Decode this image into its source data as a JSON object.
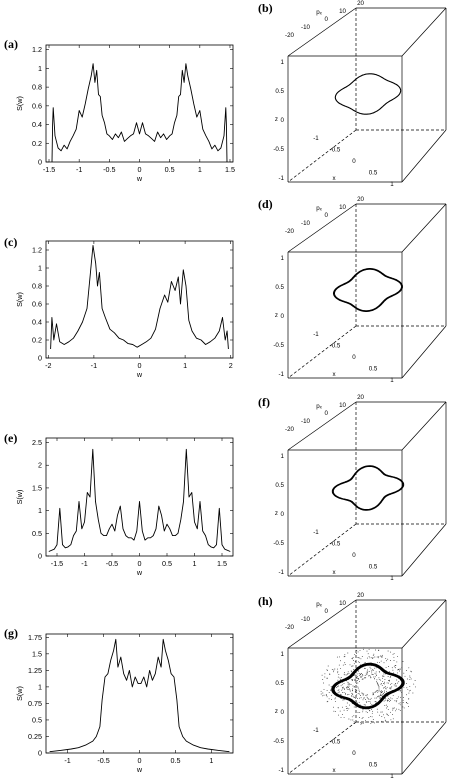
{
  "figure": {
    "panels": [
      {
        "id": "a",
        "label": "(a)"
      },
      {
        "id": "b",
        "label": "(b)"
      },
      {
        "id": "c",
        "label": "(c)"
      },
      {
        "id": "d",
        "label": "(d)"
      },
      {
        "id": "e",
        "label": "(e)"
      },
      {
        "id": "f",
        "label": "(f)"
      },
      {
        "id": "g",
        "label": "(g)"
      },
      {
        "id": "h",
        "label": "(h)"
      }
    ]
  },
  "chart_data": [
    {
      "panel": "a",
      "type": "line",
      "xlabel": "w",
      "ylabel": "S(w)",
      "xlim": [
        -1.55,
        1.55
      ],
      "ylim": [
        0,
        1.25
      ],
      "xticks": [
        -1.5,
        -1,
        -0.5,
        0,
        0.5,
        1,
        1.5
      ],
      "xtick_labels": [
        "-1.5",
        "-1",
        "-0.5",
        "0",
        "0.5",
        "1",
        "1.5"
      ],
      "yticks": [
        0,
        0.2,
        0.4,
        0.6,
        0.8,
        1,
        1.2
      ],
      "ytick_labels": [
        "0",
        "0.2",
        "0.4",
        "0.6",
        "0.8",
        "1",
        "1.2"
      ],
      "x": [
        -1.45,
        -1.44,
        -1.43,
        -1.4,
        -1.35,
        -1.3,
        -1.25,
        -1.2,
        -1.15,
        -1.1,
        -1.05,
        -1.0,
        -0.95,
        -0.9,
        -0.85,
        -0.8,
        -0.77,
        -0.74,
        -0.71,
        -0.68,
        -0.65,
        -0.62,
        -0.58,
        -0.54,
        -0.5,
        -0.45,
        -0.4,
        -0.35,
        -0.3,
        -0.25,
        -0.2,
        -0.15,
        -0.1,
        -0.05,
        0.0,
        0.05,
        0.1,
        0.15,
        0.2,
        0.25,
        0.3,
        0.35,
        0.4,
        0.45,
        0.5,
        0.54,
        0.58,
        0.62,
        0.65,
        0.68,
        0.71,
        0.74,
        0.77,
        0.8,
        0.85,
        0.9,
        0.95,
        1.0,
        1.05,
        1.1,
        1.15,
        1.2,
        1.25,
        1.3,
        1.35,
        1.4,
        1.43,
        1.44,
        1.45
      ],
      "y": [
        0,
        0.4,
        0.58,
        0.28,
        0.15,
        0.12,
        0.18,
        0.14,
        0.22,
        0.28,
        0.35,
        0.55,
        0.48,
        0.62,
        0.78,
        0.92,
        1.05,
        0.85,
        0.98,
        0.72,
        0.7,
        0.5,
        0.42,
        0.3,
        0.28,
        0.24,
        0.3,
        0.26,
        0.32,
        0.22,
        0.25,
        0.28,
        0.3,
        0.42,
        0.3,
        0.42,
        0.3,
        0.28,
        0.25,
        0.22,
        0.32,
        0.26,
        0.3,
        0.24,
        0.28,
        0.3,
        0.42,
        0.5,
        0.7,
        0.72,
        0.98,
        0.85,
        1.05,
        0.92,
        0.78,
        0.62,
        0.48,
        0.55,
        0.35,
        0.28,
        0.22,
        0.14,
        0.18,
        0.12,
        0.15,
        0.28,
        0.58,
        0.4,
        0
      ]
    },
    {
      "panel": "c",
      "type": "line",
      "xlabel": "w",
      "ylabel": "S(w)",
      "xlim": [
        -2.05,
        2.05
      ],
      "ylim": [
        0,
        1.3
      ],
      "xticks": [
        -2,
        -1,
        0,
        1,
        2
      ],
      "xtick_labels": [
        "-2",
        "-1",
        "0",
        "1",
        "2"
      ],
      "yticks": [
        0,
        0.2,
        0.4,
        0.6,
        0.8,
        1,
        1.2
      ],
      "ytick_labels": [
        "0",
        "0.2",
        "0.4",
        "0.6",
        "0.8",
        "1",
        "1.2"
      ],
      "x": [
        -1.95,
        -1.92,
        -1.88,
        -1.82,
        -1.75,
        -1.65,
        -1.55,
        -1.45,
        -1.35,
        -1.25,
        -1.15,
        -1.08,
        -1.02,
        -0.96,
        -0.92,
        -0.88,
        -0.82,
        -0.75,
        -0.65,
        -0.55,
        -0.45,
        -0.35,
        -0.25,
        -0.15,
        -0.05,
        0.05,
        0.15,
        0.25,
        0.35,
        0.45,
        0.55,
        0.62,
        0.7,
        0.78,
        0.85,
        0.9,
        0.96,
        1.02,
        1.08,
        1.15,
        1.25,
        1.35,
        1.45,
        1.55,
        1.65,
        1.75,
        1.82,
        1.88,
        1.92,
        1.95
      ],
      "y": [
        0.1,
        0.45,
        0.2,
        0.38,
        0.18,
        0.15,
        0.18,
        0.22,
        0.3,
        0.4,
        0.55,
        0.92,
        1.25,
        1.05,
        0.8,
        0.95,
        0.55,
        0.45,
        0.32,
        0.28,
        0.22,
        0.2,
        0.16,
        0.15,
        0.12,
        0.15,
        0.18,
        0.22,
        0.32,
        0.55,
        0.7,
        0.62,
        0.85,
        0.75,
        0.9,
        0.6,
        0.98,
        0.8,
        0.42,
        0.3,
        0.22,
        0.2,
        0.15,
        0.18,
        0.22,
        0.3,
        0.45,
        0.2,
        0.3,
        0.1
      ]
    },
    {
      "panel": "e",
      "type": "line",
      "xlabel": "w",
      "ylabel": "S(w)",
      "xlim": [
        -1.7,
        1.7
      ],
      "ylim": [
        0,
        2.6
      ],
      "xticks": [
        -1.5,
        -1,
        -0.5,
        0,
        0.5,
        1,
        1.5
      ],
      "xtick_labels": [
        "-1.5",
        "-1",
        "-0.5",
        "0",
        "0.5",
        "1",
        "1.5"
      ],
      "yticks": [
        0,
        0.5,
        1,
        1.5,
        2,
        2.5
      ],
      "ytick_labels": [
        "0",
        "0.5",
        "1",
        "1.5",
        "2",
        "2.5"
      ],
      "x": [
        -1.65,
        -1.55,
        -1.5,
        -1.45,
        -1.4,
        -1.35,
        -1.3,
        -1.25,
        -1.2,
        -1.15,
        -1.1,
        -1.05,
        -1.0,
        -0.95,
        -0.9,
        -0.85,
        -0.8,
        -0.75,
        -0.7,
        -0.65,
        -0.6,
        -0.55,
        -0.5,
        -0.45,
        -0.4,
        -0.35,
        -0.3,
        -0.25,
        -0.2,
        -0.15,
        -0.1,
        -0.05,
        0.0,
        0.05,
        0.1,
        0.15,
        0.2,
        0.25,
        0.3,
        0.35,
        0.4,
        0.45,
        0.5,
        0.55,
        0.6,
        0.65,
        0.7,
        0.75,
        0.8,
        0.85,
        0.9,
        0.95,
        1.0,
        1.05,
        1.1,
        1.15,
        1.2,
        1.25,
        1.3,
        1.35,
        1.4,
        1.45,
        1.5,
        1.55,
        1.65
      ],
      "y": [
        0.1,
        0.15,
        0.25,
        1.05,
        0.25,
        0.18,
        0.2,
        0.25,
        0.45,
        0.55,
        1.2,
        0.6,
        0.75,
        1.4,
        1.3,
        2.35,
        1.2,
        0.8,
        0.5,
        0.45,
        0.45,
        0.6,
        0.7,
        0.55,
        0.9,
        1.1,
        0.6,
        0.45,
        0.4,
        0.4,
        0.35,
        0.55,
        1.2,
        0.55,
        0.35,
        0.4,
        0.4,
        0.45,
        0.6,
        1.1,
        0.9,
        0.55,
        0.7,
        0.6,
        0.45,
        0.45,
        0.5,
        0.8,
        1.2,
        2.35,
        1.3,
        1.4,
        0.75,
        0.6,
        1.2,
        0.55,
        0.45,
        0.25,
        0.2,
        0.18,
        0.25,
        1.05,
        0.25,
        0.15,
        0.1
      ]
    },
    {
      "panel": "g",
      "type": "line",
      "xlabel": "w",
      "ylabel": "S(w)",
      "xlim": [
        -1.3,
        1.3
      ],
      "ylim": [
        0,
        1.8
      ],
      "xticks": [
        -1,
        -0.5,
        0,
        0.5,
        1
      ],
      "xtick_labels": [
        "-1",
        "-0.5",
        "0",
        "0.5",
        "1"
      ],
      "yticks": [
        0,
        0.25,
        0.5,
        0.75,
        1,
        1.25,
        1.5,
        1.75
      ],
      "ytick_labels": [
        "0",
        "0.25",
        "0.5",
        "0.75",
        "1",
        "1.25",
        "1.5",
        "1.75"
      ],
      "x": [
        -1.25,
        -1.1,
        -0.95,
        -0.85,
        -0.75,
        -0.65,
        -0.6,
        -0.55,
        -0.52,
        -0.48,
        -0.44,
        -0.4,
        -0.36,
        -0.33,
        -0.3,
        -0.26,
        -0.22,
        -0.18,
        -0.14,
        -0.1,
        -0.06,
        -0.02,
        0.02,
        0.06,
        0.1,
        0.14,
        0.18,
        0.22,
        0.26,
        0.3,
        0.33,
        0.36,
        0.4,
        0.44,
        0.48,
        0.52,
        0.55,
        0.6,
        0.65,
        0.75,
        0.85,
        0.95,
        1.1,
        1.25
      ],
      "y": [
        0.02,
        0.04,
        0.06,
        0.08,
        0.12,
        0.18,
        0.25,
        0.4,
        0.8,
        1.15,
        1.2,
        1.4,
        1.55,
        1.72,
        1.3,
        1.45,
        1.2,
        1.1,
        1.25,
        1.0,
        1.15,
        1.05,
        1.05,
        1.15,
        1.0,
        1.25,
        1.1,
        1.2,
        1.45,
        1.3,
        1.72,
        1.55,
        1.4,
        1.2,
        1.15,
        0.8,
        0.4,
        0.25,
        0.18,
        0.12,
        0.08,
        0.06,
        0.04,
        0.02
      ]
    },
    {
      "panel": "b",
      "type": "3d-curve",
      "axes": {
        "x": "x",
        "z": "z",
        "p": "pₓ"
      },
      "x_ticks": [
        "-1",
        "-0.5",
        "0",
        "0.5",
        "1"
      ],
      "z_ticks": [
        "-1",
        "-0.5",
        "0",
        "0.5",
        "1"
      ],
      "p_ticks": [
        "-20",
        "-10",
        "0",
        "10",
        "20"
      ],
      "curve": {
        "lobes": 4,
        "amplitude": 0.1,
        "thickness": 1
      }
    },
    {
      "panel": "d",
      "type": "3d-curve",
      "axes": {
        "x": "x",
        "z": "z",
        "p": "pₓ"
      },
      "x_ticks": [
        "-1",
        "-0.5",
        "0",
        "0.5",
        "1"
      ],
      "z_ticks": [
        "-1",
        "-0.5",
        "0",
        "0.5",
        "1"
      ],
      "p_ticks": [
        "-20",
        "-10",
        "0",
        "10",
        "20"
      ],
      "curve": {
        "lobes": 4,
        "amplitude": 0.13,
        "thickness": 2
      }
    },
    {
      "panel": "f",
      "type": "3d-curve",
      "axes": {
        "x": "x",
        "z": "z",
        "p": "pₓ"
      },
      "x_ticks": [
        "-1",
        "-0.5",
        "0",
        "0.5",
        "1"
      ],
      "z_ticks": [
        "-1",
        "-0.5",
        "0",
        "0.5",
        "1"
      ],
      "p_ticks": [
        "-20",
        "-10",
        "0",
        "10",
        "20"
      ],
      "curve": {
        "lobes": 4,
        "amplitude": 0.17,
        "thickness": 2
      }
    },
    {
      "panel": "h",
      "type": "3d-scatter",
      "axes": {
        "x": "x",
        "z": "z",
        "p": "pₓ"
      },
      "x_ticks": [
        "-1",
        "-0.5",
        "0",
        "0.5",
        "1"
      ],
      "z_ticks": [
        "-1",
        "-0.5",
        "0",
        "0.5",
        "1"
      ],
      "p_ticks": [
        "-20",
        "-10",
        "0",
        "10",
        "20"
      ],
      "curve": {
        "lobes": 4,
        "amplitude": 0.15,
        "thickness": 3,
        "scatter": true
      }
    }
  ]
}
